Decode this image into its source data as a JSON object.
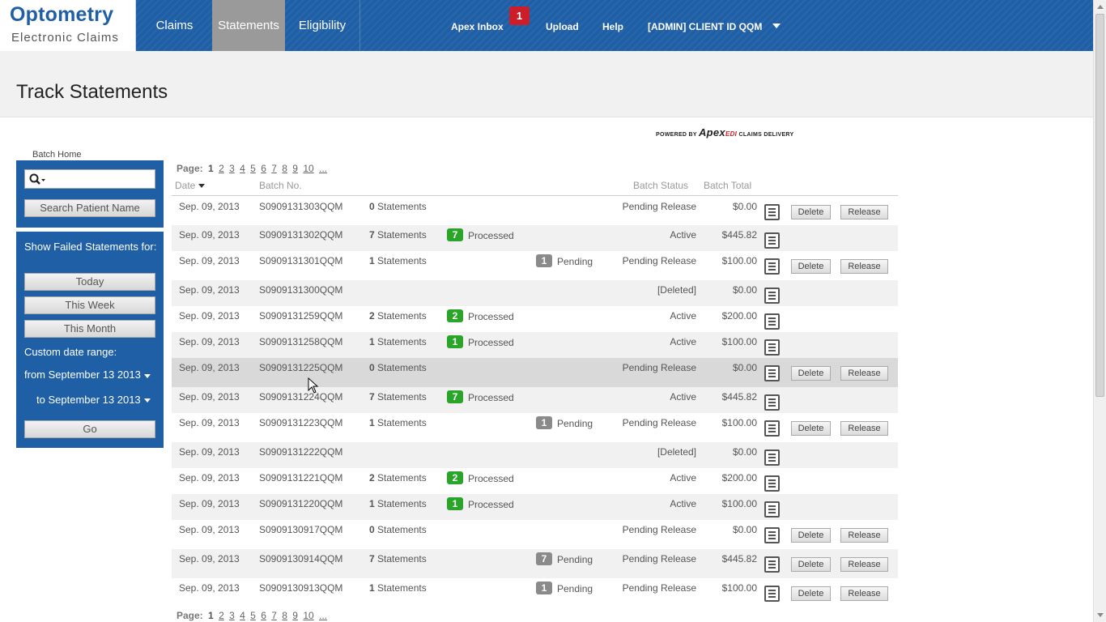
{
  "logo": {
    "line1": "Optometry",
    "line2": "Electronic Claims"
  },
  "nav": {
    "tabs": [
      {
        "label": "Claims"
      },
      {
        "label": "Statements",
        "active": true
      },
      {
        "label": "Eligibility"
      }
    ],
    "links": {
      "inbox": "Apex Inbox",
      "inbox_count": "1",
      "upload": "Upload",
      "help": "Help",
      "client": "[ADMIN] CLIENT ID QQM"
    }
  },
  "page_title": "Track Statements",
  "powered_by": {
    "prefix": "POWERED BY",
    "brand": "Apex",
    "edi": "EDI",
    "suffix": "CLAIMS DELIVERY"
  },
  "sidebar": {
    "batch_home": "Batch Home",
    "search_icon": "search-icon",
    "search_placeholder": "",
    "search_button": "Search Patient Name",
    "failed_title": "Show Failed Statements for:",
    "today": "Today",
    "this_week": "This Week",
    "this_month": "This Month",
    "custom_range_label": "Custom date range:",
    "from_label": "from",
    "from_date": "September 13 2013",
    "to_label": "to",
    "to_date": "September 13 2013",
    "go": "Go"
  },
  "pagination": {
    "label": "Page:",
    "pages": [
      "1",
      "2",
      "3",
      "4",
      "5",
      "6",
      "7",
      "8",
      "9",
      "10",
      "..."
    ],
    "current": "1"
  },
  "table": {
    "headers": {
      "date": "Date",
      "batch_no": "Batch No.",
      "batch_status": "Batch Status",
      "batch_total": "Batch Total"
    },
    "statements_word": "Statements",
    "delete_label": "Delete",
    "release_label": "Release",
    "rows": [
      {
        "date": "Sep. 09, 2013",
        "batch": "S0909131303QQM",
        "count": "0",
        "processed": "",
        "pending": "",
        "status": "Pending Release",
        "total": "$0.00",
        "actions": true
      },
      {
        "date": "Sep. 09, 2013",
        "batch": "S0909131302QQM",
        "count": "7",
        "processed": "7",
        "pending": "",
        "status": "Active",
        "total": "$445.82",
        "actions": false
      },
      {
        "date": "Sep. 09, 2013",
        "batch": "S0909131301QQM",
        "count": "1",
        "processed": "",
        "pending": "1",
        "status": "Pending Release",
        "total": "$100.00",
        "actions": true
      },
      {
        "date": "Sep. 09, 2013",
        "batch": "S0909131300QQM",
        "count": "",
        "processed": "",
        "pending": "",
        "status": "[Deleted]",
        "total": "$0.00",
        "actions": false
      },
      {
        "date": "Sep. 09, 2013",
        "batch": "S0909131259QQM",
        "count": "2",
        "processed": "2",
        "pending": "",
        "status": "Active",
        "total": "$200.00",
        "actions": false
      },
      {
        "date": "Sep. 09, 2013",
        "batch": "S0909131258QQM",
        "count": "1",
        "processed": "1",
        "pending": "",
        "status": "Active",
        "total": "$100.00",
        "actions": false
      },
      {
        "date": "Sep. 09, 2013",
        "batch": "S0909131225QQM",
        "count": "0",
        "processed": "",
        "pending": "",
        "status": "Pending Release",
        "total": "$0.00",
        "actions": true,
        "highlight": true
      },
      {
        "date": "Sep. 09, 2013",
        "batch": "S0909131224QQM",
        "count": "7",
        "processed": "7",
        "pending": "",
        "status": "Active",
        "total": "$445.82",
        "actions": false
      },
      {
        "date": "Sep. 09, 2013",
        "batch": "S0909131223QQM",
        "count": "1",
        "processed": "",
        "pending": "1",
        "status": "Pending Release",
        "total": "$100.00",
        "actions": true
      },
      {
        "date": "Sep. 09, 2013",
        "batch": "S0909131222QQM",
        "count": "",
        "processed": "",
        "pending": "",
        "status": "[Deleted]",
        "total": "$0.00",
        "actions": false
      },
      {
        "date": "Sep. 09, 2013",
        "batch": "S0909131221QQM",
        "count": "2",
        "processed": "2",
        "pending": "",
        "status": "Active",
        "total": "$200.00",
        "actions": false
      },
      {
        "date": "Sep. 09, 2013",
        "batch": "S0909131220QQM",
        "count": "1",
        "processed": "1",
        "pending": "",
        "status": "Active",
        "total": "$100.00",
        "actions": false
      },
      {
        "date": "Sep. 09, 2013",
        "batch": "S0909130917QQM",
        "count": "0",
        "processed": "",
        "pending": "",
        "status": "Pending Release",
        "total": "$0.00",
        "actions": true
      },
      {
        "date": "Sep. 09, 2013",
        "batch": "S0909130914QQM",
        "count": "7",
        "processed": "",
        "pending": "7",
        "status": "Pending Release",
        "total": "$445.82",
        "actions": true
      },
      {
        "date": "Sep. 09, 2013",
        "batch": "S0909130913QQM",
        "count": "1",
        "processed": "",
        "pending": "1",
        "status": "Pending Release",
        "total": "$100.00",
        "actions": true
      }
    ],
    "processed_label": "Processed",
    "pending_label": "Pending"
  },
  "colors": {
    "brand_blue": "#1f5fa6",
    "processed_green": "#2aa52a",
    "pending_grey": "#8a8a8a",
    "inbox_red": "#cc1e2a"
  }
}
